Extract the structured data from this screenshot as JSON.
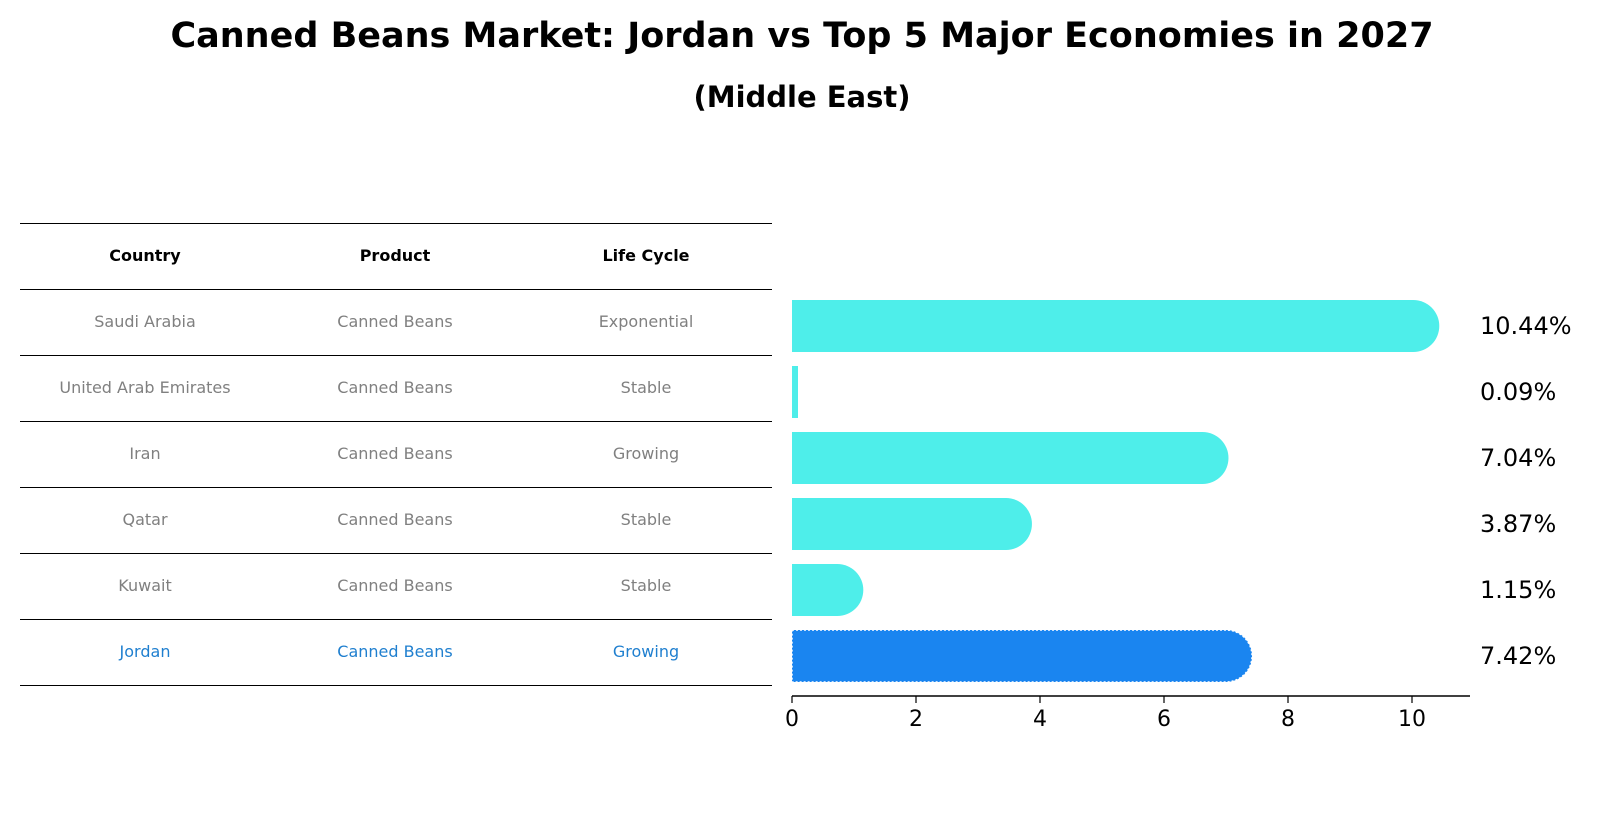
{
  "title": "Canned Beans Market: Jordan vs Top 5 Major Economies in 2027",
  "subtitle": "(Middle East)",
  "table": {
    "headers": [
      "Country",
      "Product",
      "Life Cycle"
    ],
    "rows": [
      [
        "Saudi Arabia",
        "Canned Beans",
        "Exponential"
      ],
      [
        "United Arab Emirates",
        "Canned Beans",
        "Stable"
      ],
      [
        "Iran",
        "Canned Beans",
        "Growing"
      ],
      [
        "Qatar",
        "Canned Beans",
        "Stable"
      ],
      [
        "Kuwait",
        "Canned Beans",
        "Stable"
      ],
      [
        "Jordan",
        "Canned Beans",
        "Growing"
      ]
    ]
  },
  "colors": {
    "bar": "#4eeeea",
    "highlight_bar": "#1a85f0",
    "highlight_text": "#1f7fcf",
    "row_text": "#808080"
  },
  "chart_data": {
    "type": "bar",
    "orientation": "horizontal",
    "categories": [
      "Saudi Arabia",
      "United Arab Emirates",
      "Iran",
      "Qatar",
      "Kuwait",
      "Jordan"
    ],
    "values": [
      10.44,
      0.09,
      7.04,
      3.87,
      1.15,
      7.42
    ],
    "value_labels": [
      "10.44%",
      "0.09%",
      "7.04%",
      "3.87%",
      "1.15%",
      "7.42%"
    ],
    "highlight": "Jordan",
    "xlim": [
      0,
      11
    ],
    "xticks": [
      0,
      2,
      4,
      6,
      8,
      10
    ],
    "xlabel": "",
    "ylabel": ""
  }
}
